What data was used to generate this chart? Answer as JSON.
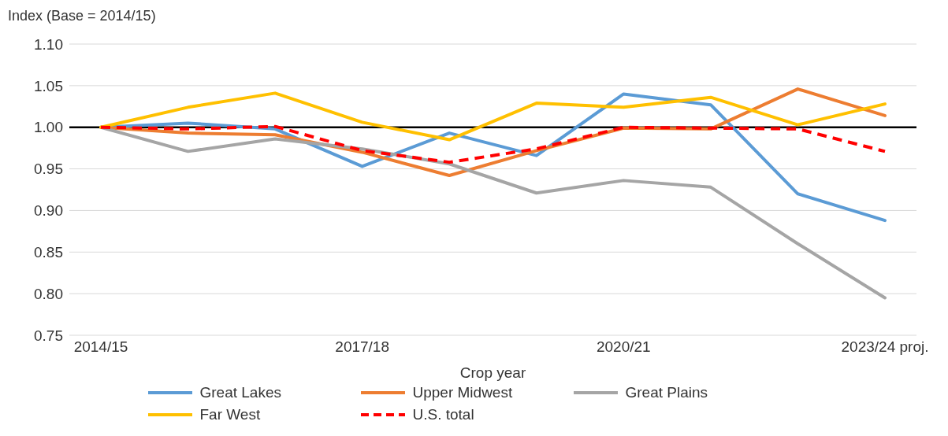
{
  "chart_data": {
    "type": "line",
    "ylabel": "Index (Base = 2014/15)",
    "xlabel": "Crop year",
    "categories": [
      "2014/15",
      null,
      null,
      "2017/18",
      null,
      null,
      "2020/21",
      null,
      null,
      "2023/24 proj."
    ],
    "series": [
      {
        "name": "Great Lakes",
        "color": "#5b9bd5",
        "values": [
          1.0,
          1.005,
          0.998,
          0.953,
          0.993,
          0.966,
          1.04,
          1.027,
          0.92,
          0.888
        ]
      },
      {
        "name": "Upper Midwest",
        "color": "#ed7d31",
        "values": [
          1.0,
          0.993,
          0.991,
          0.97,
          0.942,
          0.972,
          0.999,
          0.998,
          1.046,
          1.014
        ]
      },
      {
        "name": "Great Plains",
        "color": "#a5a5a5",
        "values": [
          1.0,
          0.971,
          0.986,
          0.974,
          0.956,
          0.921,
          0.936,
          0.928,
          0.86,
          0.795
        ]
      },
      {
        "name": "Far West",
        "color": "#ffc000",
        "values": [
          1.0,
          1.024,
          1.041,
          1.006,
          0.985,
          1.029,
          1.024,
          1.036,
          1.003,
          1.028
        ]
      },
      {
        "name": "U.S. total",
        "color": "#ff0000",
        "line_style": "dashed",
        "values": [
          1.0,
          0.998,
          1.001,
          0.972,
          0.958,
          0.974,
          1.0,
          0.999,
          0.998,
          0.971
        ]
      }
    ],
    "ylim": [
      0.75,
      1.1
    ],
    "yticks": [
      {
        "value": 0.75,
        "label": "0.75"
      },
      {
        "value": 0.8,
        "label": "0.80"
      },
      {
        "value": 0.85,
        "label": "0.85"
      },
      {
        "value": 0.9,
        "label": "0.90"
      },
      {
        "value": 0.95,
        "label": "0.95"
      },
      {
        "value": 1.0,
        "label": "1.00"
      },
      {
        "value": 1.05,
        "label": "1.05"
      },
      {
        "value": 1.1,
        "label": "1.10"
      }
    ],
    "ref_lines": [
      {
        "axis": "y",
        "value": 1.0,
        "color": "#000000"
      }
    ],
    "grid": "y",
    "legend": "bottom",
    "marker": "none"
  }
}
